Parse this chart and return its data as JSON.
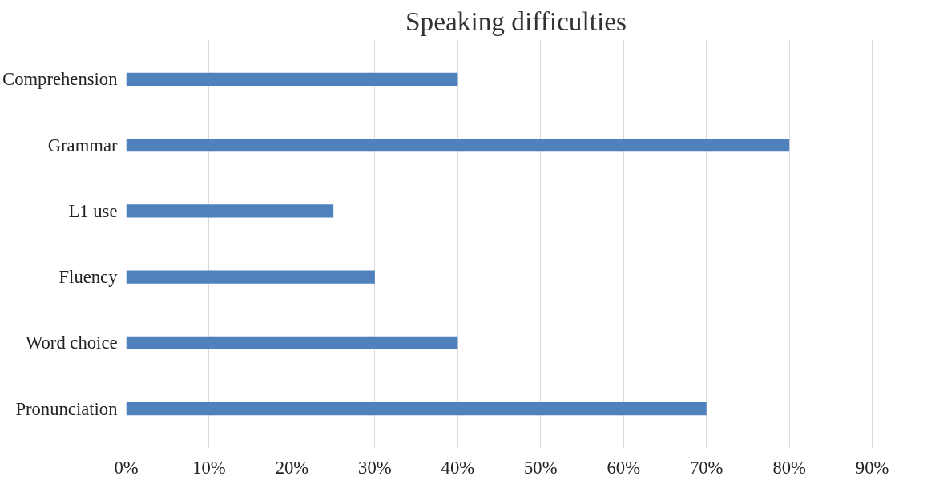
{
  "chart_data": {
    "type": "bar",
    "orientation": "horizontal",
    "title": "Speaking difficulties",
    "categories": [
      "Comprehension",
      "Grammar",
      "L1 use",
      "Fluency",
      "Word choice",
      "Pronunciation"
    ],
    "values": [
      40,
      80,
      25,
      30,
      40,
      70
    ],
    "color": "#4f81bd",
    "xlim": [
      0,
      90
    ],
    "xticks": [
      {
        "value": 0,
        "label": "0%"
      },
      {
        "value": 10,
        "label": "10%"
      },
      {
        "value": 20,
        "label": "20%"
      },
      {
        "value": 30,
        "label": "30%"
      },
      {
        "value": 40,
        "label": "40%"
      },
      {
        "value": 50,
        "label": "50%"
      },
      {
        "value": 60,
        "label": "60%"
      },
      {
        "value": 70,
        "label": "70%"
      },
      {
        "value": 80,
        "label": "80%"
      },
      {
        "value": 90,
        "label": "90%"
      }
    ],
    "grid": "x"
  }
}
